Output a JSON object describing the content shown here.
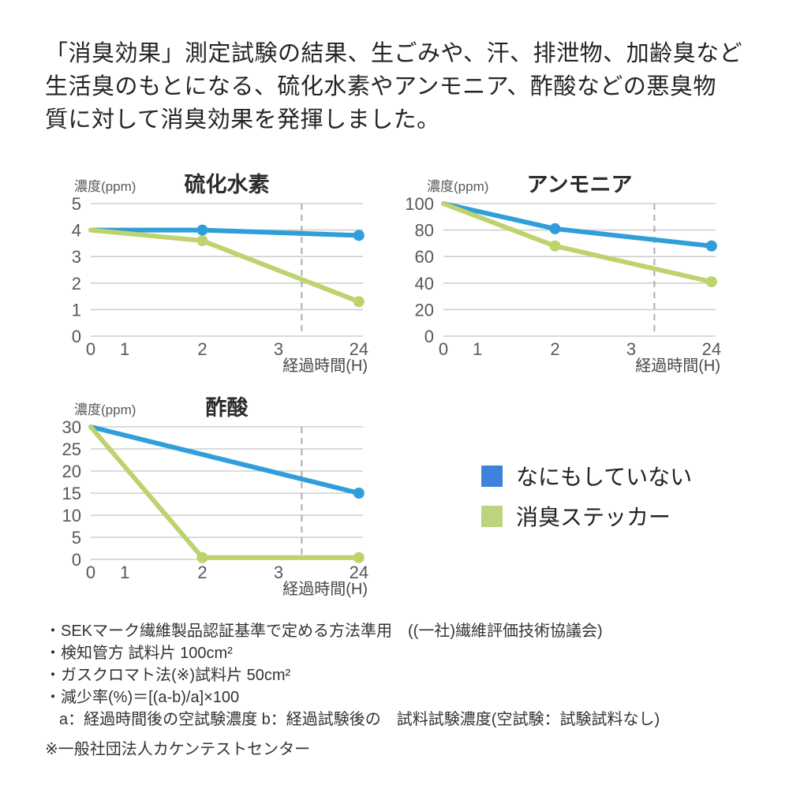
{
  "heading": {
    "lines": [
      "「消臭効果」測定試験の結果、生ごみや、汗、排泄物、加齢臭など",
      "生活臭のもとになる、硫化水素やアンモニア、酢酸などの悪臭物",
      "質に対して消臭効果を発揮しました。"
    ]
  },
  "colors": {
    "series_none": "#2f9ed9",
    "series_sticker": "#bdd36e",
    "grid": "#cfcfcf",
    "dash": "#a9adb0"
  },
  "chart_data": [
    {
      "type": "line",
      "title": "硫化水素",
      "ylabel": "濃度(ppm)",
      "xlabel": "経過時間(H)",
      "x_ticks": [
        "0",
        "1",
        "2",
        "3",
        "24"
      ],
      "y_ticks": [
        0,
        1,
        2,
        3,
        4,
        5
      ],
      "ylim": [
        0,
        5
      ],
      "grid": "horizontal",
      "axis_break_between": [
        "3",
        "24"
      ],
      "series": [
        {
          "name": "なにもしていない",
          "color_key": "series_none",
          "points": [
            {
              "t": "0",
              "y": 4.0
            },
            {
              "t": "2",
              "y": 4.0,
              "dot": true
            },
            {
              "t": "24",
              "y": 3.8,
              "dot": true
            }
          ]
        },
        {
          "name": "消臭ステッカー",
          "color_key": "series_sticker",
          "points": [
            {
              "t": "0",
              "y": 4.0
            },
            {
              "t": "2",
              "y": 3.6,
              "dot": true
            },
            {
              "t": "24",
              "y": 1.3,
              "dot": true
            }
          ]
        }
      ]
    },
    {
      "type": "line",
      "title": "アンモニア",
      "ylabel": "濃度(ppm)",
      "xlabel": "経過時間(H)",
      "x_ticks": [
        "0",
        "1",
        "2",
        "3",
        "24"
      ],
      "y_ticks": [
        0,
        20,
        40,
        60,
        80,
        100
      ],
      "ylim": [
        0,
        100
      ],
      "grid": "horizontal",
      "axis_break_between": [
        "3",
        "24"
      ],
      "series": [
        {
          "name": "なにもしていない",
          "color_key": "series_none",
          "points": [
            {
              "t": "0",
              "y": 100
            },
            {
              "t": "2",
              "y": 81,
              "dot": true
            },
            {
              "t": "24",
              "y": 68,
              "dot": true
            }
          ]
        },
        {
          "name": "消臭ステッカー",
          "color_key": "series_sticker",
          "points": [
            {
              "t": "0",
              "y": 100
            },
            {
              "t": "2",
              "y": 68,
              "dot": true
            },
            {
              "t": "24",
              "y": 41,
              "dot": true
            }
          ]
        }
      ]
    },
    {
      "type": "line",
      "title": "酢酸",
      "ylabel": "濃度(ppm)",
      "xlabel": "経過時間(H)",
      "x_ticks": [
        "0",
        "1",
        "2",
        "3",
        "24"
      ],
      "y_ticks": [
        0,
        5,
        10,
        15,
        20,
        25,
        30
      ],
      "ylim": [
        0,
        30
      ],
      "grid": "horizontal",
      "axis_break_between": [
        "3",
        "24"
      ],
      "series": [
        {
          "name": "なにもしていない",
          "color_key": "series_none",
          "points": [
            {
              "t": "0",
              "y": 30
            },
            {
              "t": "24",
              "y": 15,
              "dot": true
            }
          ]
        },
        {
          "name": "消臭ステッカー",
          "color_key": "series_sticker",
          "points": [
            {
              "t": "0",
              "y": 30
            },
            {
              "t": "2",
              "y": 0.4,
              "dot": true
            },
            {
              "t": "24",
              "y": 0.4,
              "dot": true
            }
          ]
        }
      ]
    }
  ],
  "legend": {
    "items": [
      {
        "label": "なにもしていない",
        "color": "#3d82db"
      },
      {
        "label": "消臭ステッカー",
        "color": "#bcd47e"
      }
    ]
  },
  "notes": {
    "items": [
      "・SEKマーク繊維製品認証基準で定める方法準用　((一社)繊維評価技術協議会)",
      "・検知管方 試料片 100cm²",
      "・ガスクロマト法(※)試料片 50cm²",
      "・減少率(%)＝[(a-b)/a]×100"
    ],
    "continuation": "a：経過時間後の空試験濃度  b：経過試験後の　試料試験濃度(空試験：試験試料なし)",
    "footnote": "※一般社団法人カケンテストセンター"
  }
}
